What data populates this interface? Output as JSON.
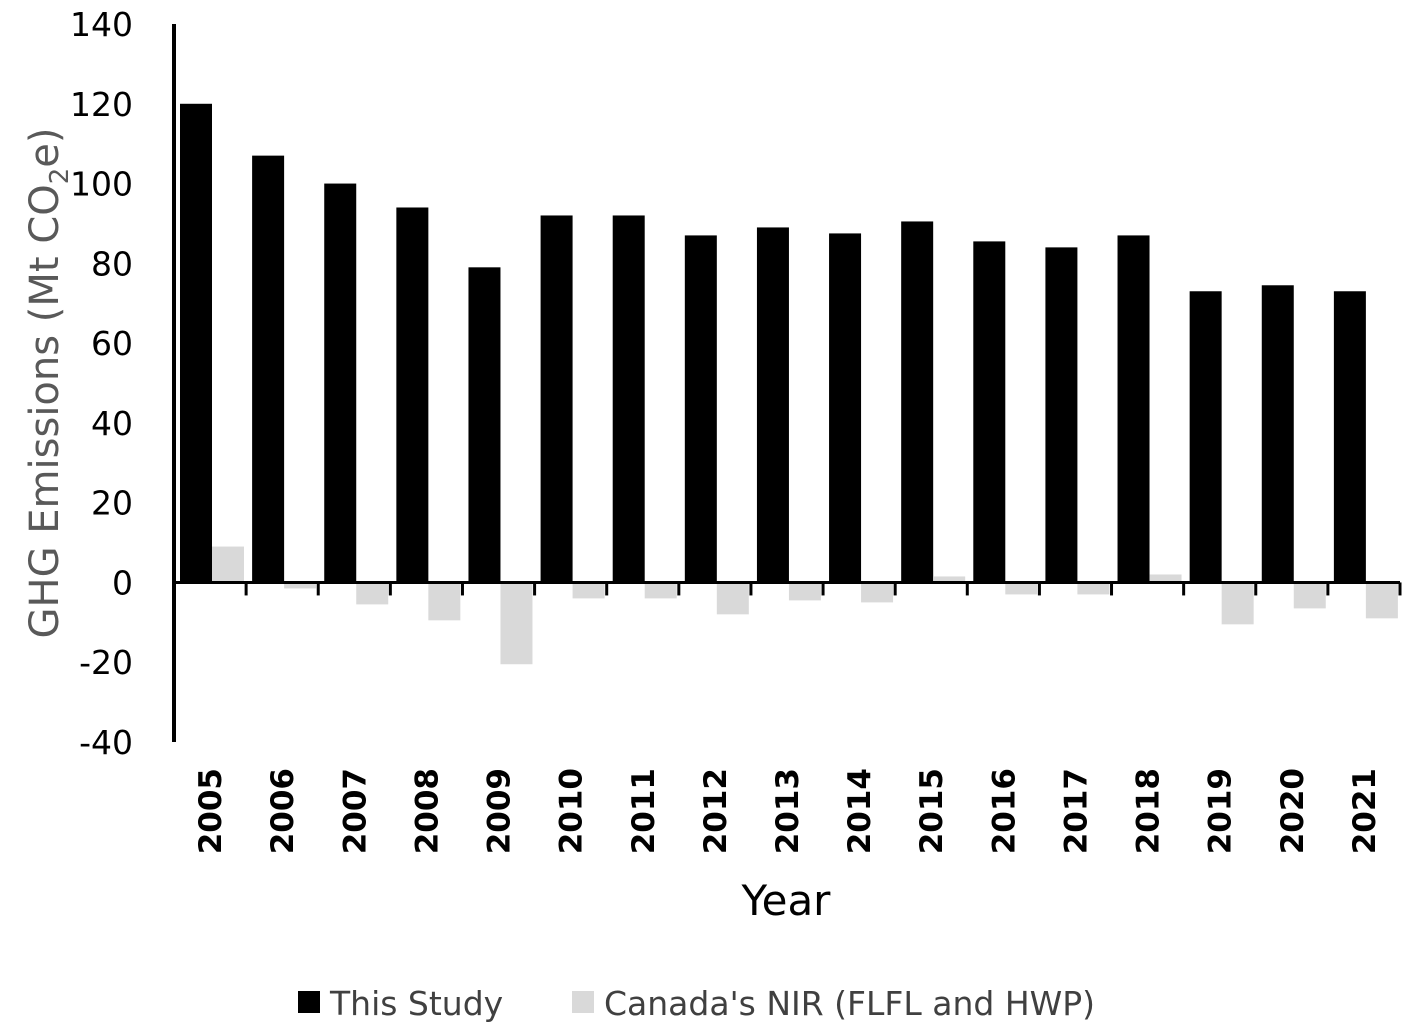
{
  "chart_data": {
    "type": "bar",
    "categories": [
      "2005",
      "2006",
      "2007",
      "2008",
      "2009",
      "2010",
      "2011",
      "2012",
      "2013",
      "2014",
      "2015",
      "2016",
      "2017",
      "2018",
      "2019",
      "2020",
      "2021"
    ],
    "series": [
      {
        "name": "This Study",
        "color": "#000000",
        "values": [
          120,
          107,
          100,
          94,
          79,
          92,
          92,
          87,
          89,
          87.5,
          90.5,
          85.5,
          84,
          87,
          73,
          74.5,
          73
        ]
      },
      {
        "name": "Canada's NIR (FLFL and HWP)",
        "color": "#d9d9d9",
        "values": [
          9,
          -1.5,
          -5.5,
          -9.5,
          -20.5,
          -4,
          -4,
          -8,
          -4.5,
          -5,
          1.5,
          -3,
          -3,
          2,
          -10.5,
          -6.5,
          -9
        ]
      }
    ],
    "xlabel": "Year",
    "ylabel_parts": {
      "before": "GHG Emissions (Mt CO",
      "subscript": "2",
      "after": "e)"
    },
    "ylim": [
      -40,
      140
    ],
    "yticks": [
      -40,
      -20,
      0,
      20,
      40,
      60,
      80,
      100,
      120,
      140
    ],
    "grid": false,
    "legend_position": "bottom"
  }
}
